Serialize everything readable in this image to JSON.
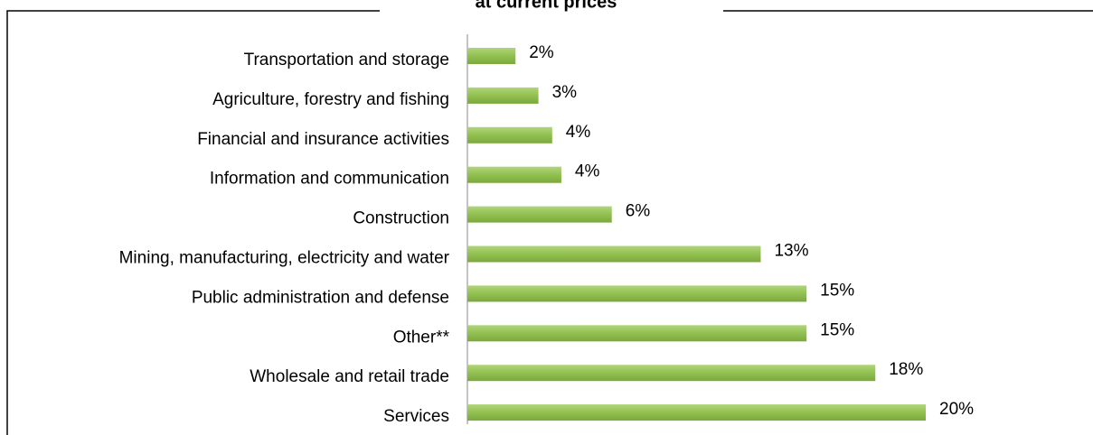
{
  "chart_data": {
    "type": "bar",
    "orientation": "horizontal",
    "title": "at current prices",
    "categories": [
      "Transportation and storage",
      "Agriculture, forestry and fishing",
      "Financial and insurance activities",
      "Information and communication",
      "Construction",
      "Mining, manufacturing, electricity and water",
      "Public administration and defense",
      "Other**",
      "Wholesale and retail trade",
      "Services"
    ],
    "values": [
      2.1,
      3.1,
      3.7,
      4.1,
      6.3,
      12.8,
      14.8,
      14.8,
      17.8,
      20
    ],
    "value_labels": [
      "2%",
      "3%",
      "4%",
      "4%",
      "6%",
      "13%",
      "15%",
      "15%",
      "18%",
      "20%"
    ],
    "color": "#92c050"
  }
}
